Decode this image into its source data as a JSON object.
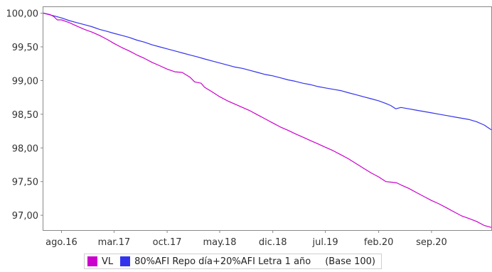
{
  "chart_data": {
    "type": "line",
    "title": "",
    "xlabel": "",
    "ylabel": "",
    "ylim": [
      96.78,
      100.09
    ],
    "xlim": [
      "2016-05-20",
      "2021-04-30"
    ],
    "y_ticks": [
      "100,00",
      "99,50",
      "99,00",
      "98,50",
      "98,00",
      "97,50",
      "97,00"
    ],
    "y_tick_values": [
      100.0,
      99.5,
      99.0,
      98.5,
      98.0,
      97.5,
      97.0
    ],
    "x_ticks": [
      "ago.16",
      "mar.17",
      "oct.17",
      "may.18",
      "dic.18",
      "jul.19",
      "feb.20",
      "sep.20"
    ],
    "x_tick_dates": [
      "2016-08-01",
      "2017-03-01",
      "2017-10-01",
      "2018-05-01",
      "2018-12-01",
      "2019-07-01",
      "2020-02-01",
      "2020-09-01"
    ],
    "grid": false,
    "legend_position": "bottom",
    "legend_note": "(Base 100)",
    "series": [
      {
        "name": "VL",
        "color": "#cc00cc",
        "x": [
          "2016-05-20",
          "2016-06-15",
          "2016-07-01",
          "2016-07-15",
          "2016-08-01",
          "2016-09-01",
          "2016-10-01",
          "2016-11-01",
          "2016-12-01",
          "2017-01-01",
          "2017-02-01",
          "2017-03-01",
          "2017-04-01",
          "2017-05-01",
          "2017-06-01",
          "2017-07-01",
          "2017-08-01",
          "2017-09-01",
          "2017-10-01",
          "2017-11-01",
          "2017-12-01",
          "2018-01-01",
          "2018-01-20",
          "2018-02-15",
          "2018-03-01",
          "2018-04-01",
          "2018-05-01",
          "2018-06-01",
          "2018-07-01",
          "2018-08-01",
          "2018-09-01",
          "2018-10-01",
          "2018-11-01",
          "2018-12-01",
          "2019-01-01",
          "2019-02-01",
          "2019-03-01",
          "2019-04-01",
          "2019-05-01",
          "2019-06-01",
          "2019-07-01",
          "2019-08-01",
          "2019-09-01",
          "2019-10-01",
          "2019-11-01",
          "2019-12-01",
          "2020-01-01",
          "2020-02-01",
          "2020-03-01",
          "2020-03-25",
          "2020-04-15",
          "2020-05-01",
          "2020-06-01",
          "2020-07-01",
          "2020-08-01",
          "2020-09-01",
          "2020-10-01",
          "2020-11-01",
          "2020-12-01",
          "2021-01-01",
          "2021-02-01",
          "2021-03-01",
          "2021-04-01",
          "2021-04-30"
        ],
        "values": [
          100.0,
          99.98,
          99.95,
          99.9,
          99.9,
          99.86,
          99.81,
          99.76,
          99.72,
          99.67,
          99.61,
          99.55,
          99.49,
          99.44,
          99.38,
          99.33,
          99.27,
          99.22,
          99.17,
          99.13,
          99.12,
          99.05,
          98.98,
          98.96,
          98.9,
          98.83,
          98.76,
          98.7,
          98.65,
          98.6,
          98.55,
          98.49,
          98.43,
          98.37,
          98.31,
          98.26,
          98.21,
          98.16,
          98.11,
          98.06,
          98.01,
          97.96,
          97.9,
          97.84,
          97.77,
          97.7,
          97.63,
          97.57,
          97.5,
          97.49,
          97.48,
          97.45,
          97.4,
          97.34,
          97.28,
          97.22,
          97.17,
          97.11,
          97.05,
          96.99,
          96.95,
          96.91,
          96.85,
          96.82
        ]
      },
      {
        "name": "80%AFI Repo día+20%AFI Letra 1 año",
        "color": "#3333ee",
        "x": [
          "2016-05-20",
          "2016-07-01",
          "2016-08-01",
          "2016-09-01",
          "2016-10-01",
          "2016-11-01",
          "2016-12-01",
          "2017-01-01",
          "2017-02-01",
          "2017-03-01",
          "2017-04-01",
          "2017-05-01",
          "2017-06-01",
          "2017-07-01",
          "2017-08-01",
          "2017-09-01",
          "2017-10-01",
          "2017-11-01",
          "2017-12-01",
          "2018-01-01",
          "2018-02-01",
          "2018-03-01",
          "2018-04-01",
          "2018-05-01",
          "2018-06-01",
          "2018-07-01",
          "2018-08-01",
          "2018-09-01",
          "2018-10-01",
          "2018-11-01",
          "2018-12-01",
          "2019-01-01",
          "2019-02-01",
          "2019-03-01",
          "2019-04-01",
          "2019-05-01",
          "2019-06-01",
          "2019-07-01",
          "2019-08-01",
          "2019-09-01",
          "2019-10-01",
          "2019-11-01",
          "2019-12-01",
          "2020-01-01",
          "2020-02-01",
          "2020-03-01",
          "2020-03-20",
          "2020-04-10",
          "2020-05-01",
          "2020-06-01",
          "2020-07-01",
          "2020-08-01",
          "2020-09-01",
          "2020-10-01",
          "2020-11-01",
          "2020-12-01",
          "2021-01-01",
          "2021-02-01",
          "2021-03-01",
          "2021-04-01",
          "2021-04-30"
        ],
        "values": [
          100.0,
          99.96,
          99.93,
          99.89,
          99.86,
          99.83,
          99.8,
          99.76,
          99.73,
          99.7,
          99.67,
          99.64,
          99.6,
          99.57,
          99.53,
          99.5,
          99.47,
          99.44,
          99.41,
          99.38,
          99.35,
          99.32,
          99.29,
          99.26,
          99.23,
          99.2,
          99.18,
          99.15,
          99.12,
          99.09,
          99.07,
          99.04,
          99.01,
          98.99,
          98.96,
          98.94,
          98.91,
          98.89,
          98.87,
          98.85,
          98.82,
          98.79,
          98.76,
          98.73,
          98.7,
          98.66,
          98.63,
          98.58,
          98.6,
          98.58,
          98.56,
          98.54,
          98.52,
          98.5,
          98.48,
          98.46,
          98.44,
          98.42,
          98.39,
          98.34,
          98.27
        ]
      }
    ]
  }
}
